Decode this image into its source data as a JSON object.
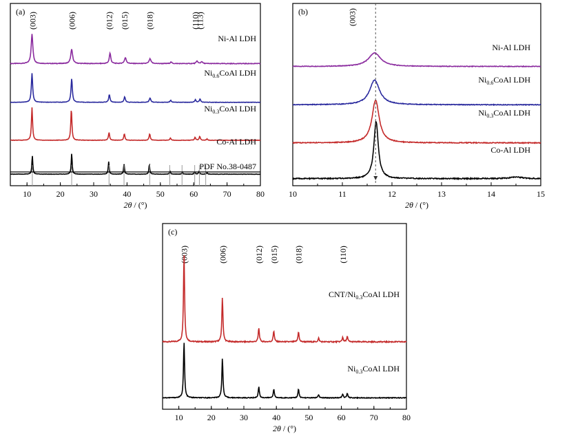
{
  "chart_data": [
    {
      "panel": "(a)",
      "type": "line",
      "xlabel_italic": "2θ",
      "xlabel_unit": " / (°)",
      "xlim": [
        5,
        80
      ],
      "xticks": [
        "10",
        "20",
        "30",
        "40",
        "50",
        "60",
        "70",
        "80"
      ],
      "hkl_labels": [
        {
          "text": "(003)",
          "x": 11.7
        },
        {
          "text": "(006)",
          "x": 23.5
        },
        {
          "text": "(012)",
          "x": 34.7
        },
        {
          "text": "(015)",
          "x": 39.3
        },
        {
          "text": "(018)",
          "x": 46.8
        },
        {
          "text": "(110)",
          "x": 60.5
        },
        {
          "text": "(113)",
          "x": 61.9
        }
      ],
      "series": [
        {
          "name": "Ni-Al LDH",
          "name_main": "Ni-Al LDH",
          "name_sub": "",
          "name_rest": "",
          "color": "#8a2a9e",
          "baseline": 0.15,
          "peaks": [
            {
              "x": 11.5,
              "h": 0.56,
              "w": 0.45
            },
            {
              "x": 23.4,
              "h": 0.27,
              "w": 0.5
            },
            {
              "x": 34.9,
              "h": 0.2,
              "w": 0.4
            },
            {
              "x": 39.5,
              "h": 0.11,
              "w": 0.5
            },
            {
              "x": 46.9,
              "h": 0.09,
              "w": 0.5
            },
            {
              "x": 53.2,
              "h": 0.03,
              "w": 0.4
            },
            {
              "x": 61.0,
              "h": 0.05,
              "w": 0.4
            },
            {
              "x": 62.4,
              "h": 0.04,
              "w": 0.4
            }
          ]
        },
        {
          "name": "Ni0.6CoAl LDH",
          "name_main": "Ni",
          "name_sub": "0.6",
          "name_rest": "CoAl LDH",
          "color": "#2a2a9e",
          "baseline": 0.12,
          "peaks": [
            {
              "x": 11.5,
              "h": 0.9,
              "w": 0.35
            },
            {
              "x": 23.4,
              "h": 0.74,
              "w": 0.35
            },
            {
              "x": 34.7,
              "h": 0.24,
              "w": 0.35
            },
            {
              "x": 39.3,
              "h": 0.17,
              "w": 0.35
            },
            {
              "x": 46.9,
              "h": 0.13,
              "w": 0.4
            },
            {
              "x": 53.1,
              "h": 0.06,
              "w": 0.35
            },
            {
              "x": 60.5,
              "h": 0.08,
              "w": 0.35
            },
            {
              "x": 61.9,
              "h": 0.1,
              "w": 0.35
            }
          ]
        },
        {
          "name": "Ni0.3CoAl LDH",
          "name_main": "Ni",
          "name_sub": "0.3",
          "name_rest": "CoAl LDH",
          "color": "#c42a2a",
          "baseline": 0.1,
          "peaks": [
            {
              "x": 11.5,
              "h": 1.0,
              "w": 0.3
            },
            {
              "x": 23.3,
              "h": 0.95,
              "w": 0.3
            },
            {
              "x": 34.6,
              "h": 0.24,
              "w": 0.3
            },
            {
              "x": 39.2,
              "h": 0.2,
              "w": 0.3
            },
            {
              "x": 46.8,
              "h": 0.2,
              "w": 0.3
            },
            {
              "x": 53.0,
              "h": 0.07,
              "w": 0.3
            },
            {
              "x": 60.4,
              "h": 0.09,
              "w": 0.3
            },
            {
              "x": 61.8,
              "h": 0.12,
              "w": 0.3
            },
            {
              "x": 64.0,
              "h": 0.04,
              "w": 0.3
            }
          ]
        },
        {
          "name": "Co-Al LDH",
          "name_main": "Co-Al LDH",
          "name_sub": "",
          "name_rest": "",
          "color": "#000000",
          "baseline": 0.08,
          "peaks": [
            {
              "x": 11.6,
              "h": 0.62,
              "w": 0.25
            },
            {
              "x": 23.4,
              "h": 0.7,
              "w": 0.25
            },
            {
              "x": 34.5,
              "h": 0.42,
              "w": 0.25
            },
            {
              "x": 39.1,
              "h": 0.34,
              "w": 0.25
            },
            {
              "x": 46.7,
              "h": 0.33,
              "w": 0.25
            },
            {
              "x": 52.9,
              "h": 0.11,
              "w": 0.25
            },
            {
              "x": 56.6,
              "h": 0.07,
              "w": 0.25
            },
            {
              "x": 60.3,
              "h": 0.08,
              "w": 0.25
            },
            {
              "x": 61.6,
              "h": 0.1,
              "w": 0.25
            },
            {
              "x": 64.0,
              "h": 0.05,
              "w": 0.25
            }
          ]
        }
      ],
      "reference": {
        "name": "PDF No.38-0487",
        "lines": [
          11.6,
          23.4,
          34.6,
          39.1,
          46.8,
          52.8,
          56.5,
          60.3,
          61.7,
          63.6
        ]
      }
    },
    {
      "panel": "(b)",
      "type": "line",
      "xlabel_italic": "2θ",
      "xlabel_unit": " / (°)",
      "xlim": [
        10,
        15
      ],
      "xticks": [
        "10",
        "11",
        "12",
        "13",
        "14",
        "15"
      ],
      "hkl_labels": [
        {
          "text": "(003)",
          "x": 11.2
        }
      ],
      "dashed_x": 11.67,
      "series": [
        {
          "name": "Ni-Al LDH",
          "name_main": "Ni-Al LDH",
          "name_sub": "",
          "name_rest": "",
          "color": "#8a2a9e",
          "baseline": 0.2,
          "peaks": [
            {
              "x": 11.65,
              "h": 0.26,
              "w": 0.22
            }
          ]
        },
        {
          "name": "Ni0.6CoAl LDH",
          "name_main": "Ni",
          "name_sub": "0.6",
          "name_rest": "CoAl LDH",
          "color": "#2a2a9e",
          "baseline": 0.14,
          "peaks": [
            {
              "x": 11.65,
              "h": 0.42,
              "w": 0.18
            }
          ]
        },
        {
          "name": "Ni0.3CoAl LDH",
          "name_main": "Ni",
          "name_sub": "0.3",
          "name_rest": "CoAl LDH",
          "color": "#c42a2a",
          "baseline": 0.1,
          "peaks": [
            {
              "x": 11.67,
              "h": 0.6,
              "w": 0.13
            }
          ]
        },
        {
          "name": "Co-Al LDH",
          "name_main": "Co-Al LDH",
          "name_sub": "",
          "name_rest": "",
          "color": "#000000",
          "baseline": 0.08,
          "peaks": [
            {
              "x": 11.68,
              "h": 0.65,
              "w": 0.08
            },
            {
              "x": 14.5,
              "h": 0.02,
              "w": 0.2
            }
          ]
        }
      ]
    },
    {
      "panel": "(c)",
      "type": "line",
      "xlabel_italic": "2θ",
      "xlabel_unit": " / (°)",
      "xlim": [
        5,
        80
      ],
      "xticks": [
        "10",
        "20",
        "30",
        "40",
        "50",
        "60",
        "70",
        "80"
      ],
      "hkl_labels": [
        {
          "text": "(003)",
          "x": 11.7
        },
        {
          "text": "(006)",
          "x": 23.5
        },
        {
          "text": "(012)",
          "x": 34.7
        },
        {
          "text": "(015)",
          "x": 39.3
        },
        {
          "text": "(018)",
          "x": 46.8
        },
        {
          "text": "(110)",
          "x": 60.5
        }
      ],
      "series": [
        {
          "name": "CNT/Ni0.3CoAl LDH",
          "name_main": "CNT/Ni",
          "name_sub": "0.3",
          "name_rest": "CoAl LDH",
          "color": "#c42a2a",
          "baseline": 0.1,
          "peaks": [
            {
              "x": 11.6,
              "h": 0.95,
              "w": 0.3
            },
            {
              "x": 23.4,
              "h": 0.48,
              "w": 0.3
            },
            {
              "x": 34.6,
              "h": 0.15,
              "w": 0.3
            },
            {
              "x": 39.2,
              "h": 0.12,
              "w": 0.3
            },
            {
              "x": 46.8,
              "h": 0.11,
              "w": 0.3
            },
            {
              "x": 53.0,
              "h": 0.04,
              "w": 0.3
            },
            {
              "x": 60.4,
              "h": 0.05,
              "w": 0.3
            },
            {
              "x": 61.8,
              "h": 0.06,
              "w": 0.3
            }
          ]
        },
        {
          "name": "Ni0.3CoAl LDH",
          "name_main": "Ni",
          "name_sub": "0.3",
          "name_rest": "CoAl LDH",
          "color": "#000000",
          "baseline": 0.08,
          "peaks": [
            {
              "x": 11.6,
              "h": 0.9,
              "w": 0.3
            },
            {
              "x": 23.4,
              "h": 0.64,
              "w": 0.3
            },
            {
              "x": 34.6,
              "h": 0.18,
              "w": 0.3
            },
            {
              "x": 39.2,
              "h": 0.14,
              "w": 0.3
            },
            {
              "x": 46.8,
              "h": 0.14,
              "w": 0.3
            },
            {
              "x": 53.0,
              "h": 0.05,
              "w": 0.3
            },
            {
              "x": 60.4,
              "h": 0.06,
              "w": 0.3
            },
            {
              "x": 61.8,
              "h": 0.07,
              "w": 0.3
            }
          ]
        }
      ]
    }
  ]
}
